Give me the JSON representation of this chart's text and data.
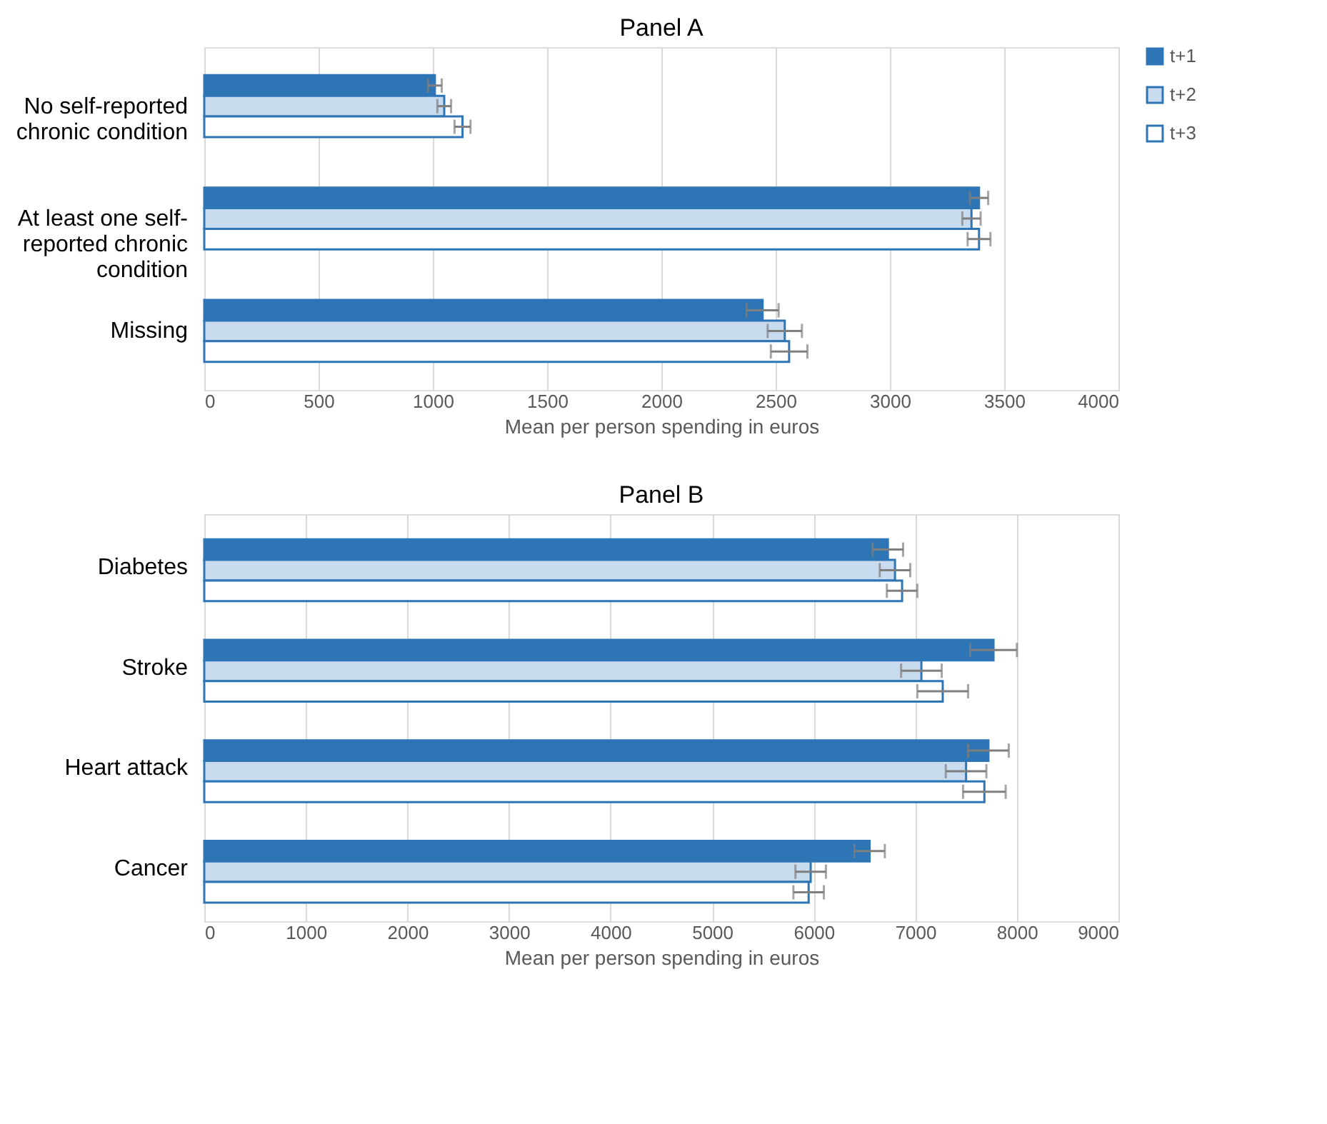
{
  "chart_data": [
    {
      "type": "bar",
      "orientation": "horizontal",
      "title": "Panel A",
      "xlabel": "Mean per person spending in euros",
      "categories": [
        "No self-reported chronic condition",
        "At least one self-reported chronic condition",
        "Missing"
      ],
      "series": [
        {
          "name": "t+1",
          "color": "#2e75b6",
          "values": [
            1009,
            3390,
            2443
          ],
          "errors": [
            30,
            40,
            70
          ]
        },
        {
          "name": "t+2",
          "color": "#c9dbef",
          "values": [
            1050,
            3357,
            2540
          ],
          "errors": [
            30,
            40,
            75
          ]
        },
        {
          "name": "t+3",
          "color": "#ffffff",
          "values": [
            1130,
            3390,
            2559
          ],
          "errors": [
            35,
            50,
            80
          ]
        }
      ],
      "xlim": [
        0,
        4000
      ],
      "xticks": [
        0,
        500,
        1000,
        1500,
        2000,
        2500,
        3000,
        3500,
        4000
      ],
      "grid": "x",
      "legend": "top right"
    },
    {
      "type": "bar",
      "orientation": "horizontal",
      "title": "Panel B",
      "xlabel": "Mean per person spending in euros",
      "categories": [
        "Diabetes",
        "Stroke",
        "Heart attack",
        "Cancer"
      ],
      "series": [
        {
          "name": "t+1",
          "color": "#2e75b6",
          "values": [
            6730,
            7770,
            7720,
            6550
          ],
          "errors": [
            150,
            230,
            200,
            150
          ]
        },
        {
          "name": "t+2",
          "color": "#c9dbef",
          "values": [
            6800,
            7060,
            7500,
            5970
          ],
          "errors": [
            150,
            200,
            200,
            150
          ]
        },
        {
          "name": "t+3",
          "color": "#ffffff",
          "values": [
            6870,
            7270,
            7680,
            5950
          ],
          "errors": [
            150,
            250,
            210,
            150
          ]
        }
      ],
      "xlim": [
        0,
        9000
      ],
      "xticks": [
        0,
        1000,
        2000,
        3000,
        4000,
        5000,
        6000,
        7000,
        8000,
        9000
      ],
      "grid": "x",
      "legend": "top right"
    }
  ]
}
